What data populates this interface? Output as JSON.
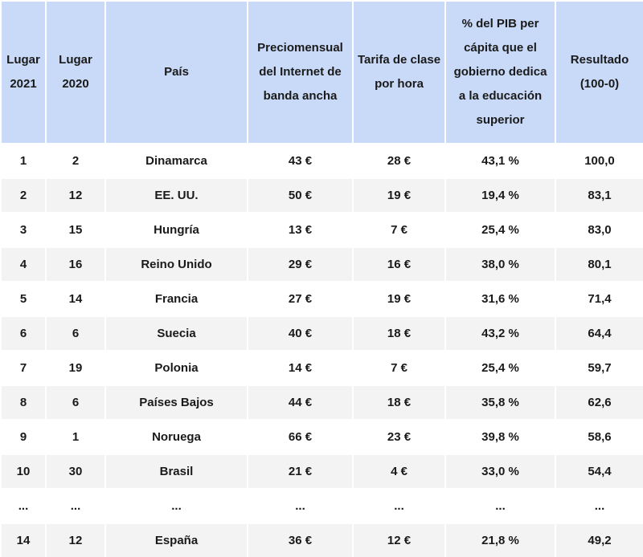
{
  "table": {
    "headers": [
      "Lugar 2021",
      "Lugar 2020",
      "País",
      "Preciomensual del Internet de banda ancha",
      "Tarifa de clase por hora",
      "% del PIB per cápita que el gobierno dedica a la educación superior",
      "Resultado (100-0)"
    ],
    "rows": [
      [
        "1",
        "2",
        "Dinamarca",
        "43 €",
        "28 €",
        "43,1 %",
        "100,0"
      ],
      [
        "2",
        "12",
        "EE. UU.",
        "50 €",
        "19 €",
        "19,4 %",
        "83,1"
      ],
      [
        "3",
        "15",
        "Hungría",
        "13 €",
        "7 €",
        "25,4 %",
        "83,0"
      ],
      [
        "4",
        "16",
        "Reino Unido",
        "29 €",
        "16 €",
        "38,0 %",
        "80,1"
      ],
      [
        "5",
        "14",
        "Francia",
        "27 €",
        "19 €",
        "31,6 %",
        "71,4"
      ],
      [
        "6",
        "6",
        "Suecia",
        "40 €",
        "18 €",
        "43,2 %",
        "64,4"
      ],
      [
        "7",
        "19",
        "Polonia",
        "14 €",
        "7 €",
        "25,4 %",
        "59,7"
      ],
      [
        "8",
        "6",
        "Países Bajos",
        "44 €",
        "18 €",
        "35,8 %",
        "62,6"
      ],
      [
        "9",
        "1",
        "Noruega",
        "66 €",
        "23 €",
        "39,8 %",
        "58,6"
      ],
      [
        "10",
        "30",
        "Brasil",
        "21 €",
        "4 €",
        "33,0 %",
        "54,4"
      ],
      [
        "...",
        "...",
        "...",
        "...",
        "...",
        "...",
        "..."
      ],
      [
        "14",
        "12",
        "España",
        "36 €",
        "12 €",
        "21,8 %",
        "49,2"
      ]
    ]
  }
}
